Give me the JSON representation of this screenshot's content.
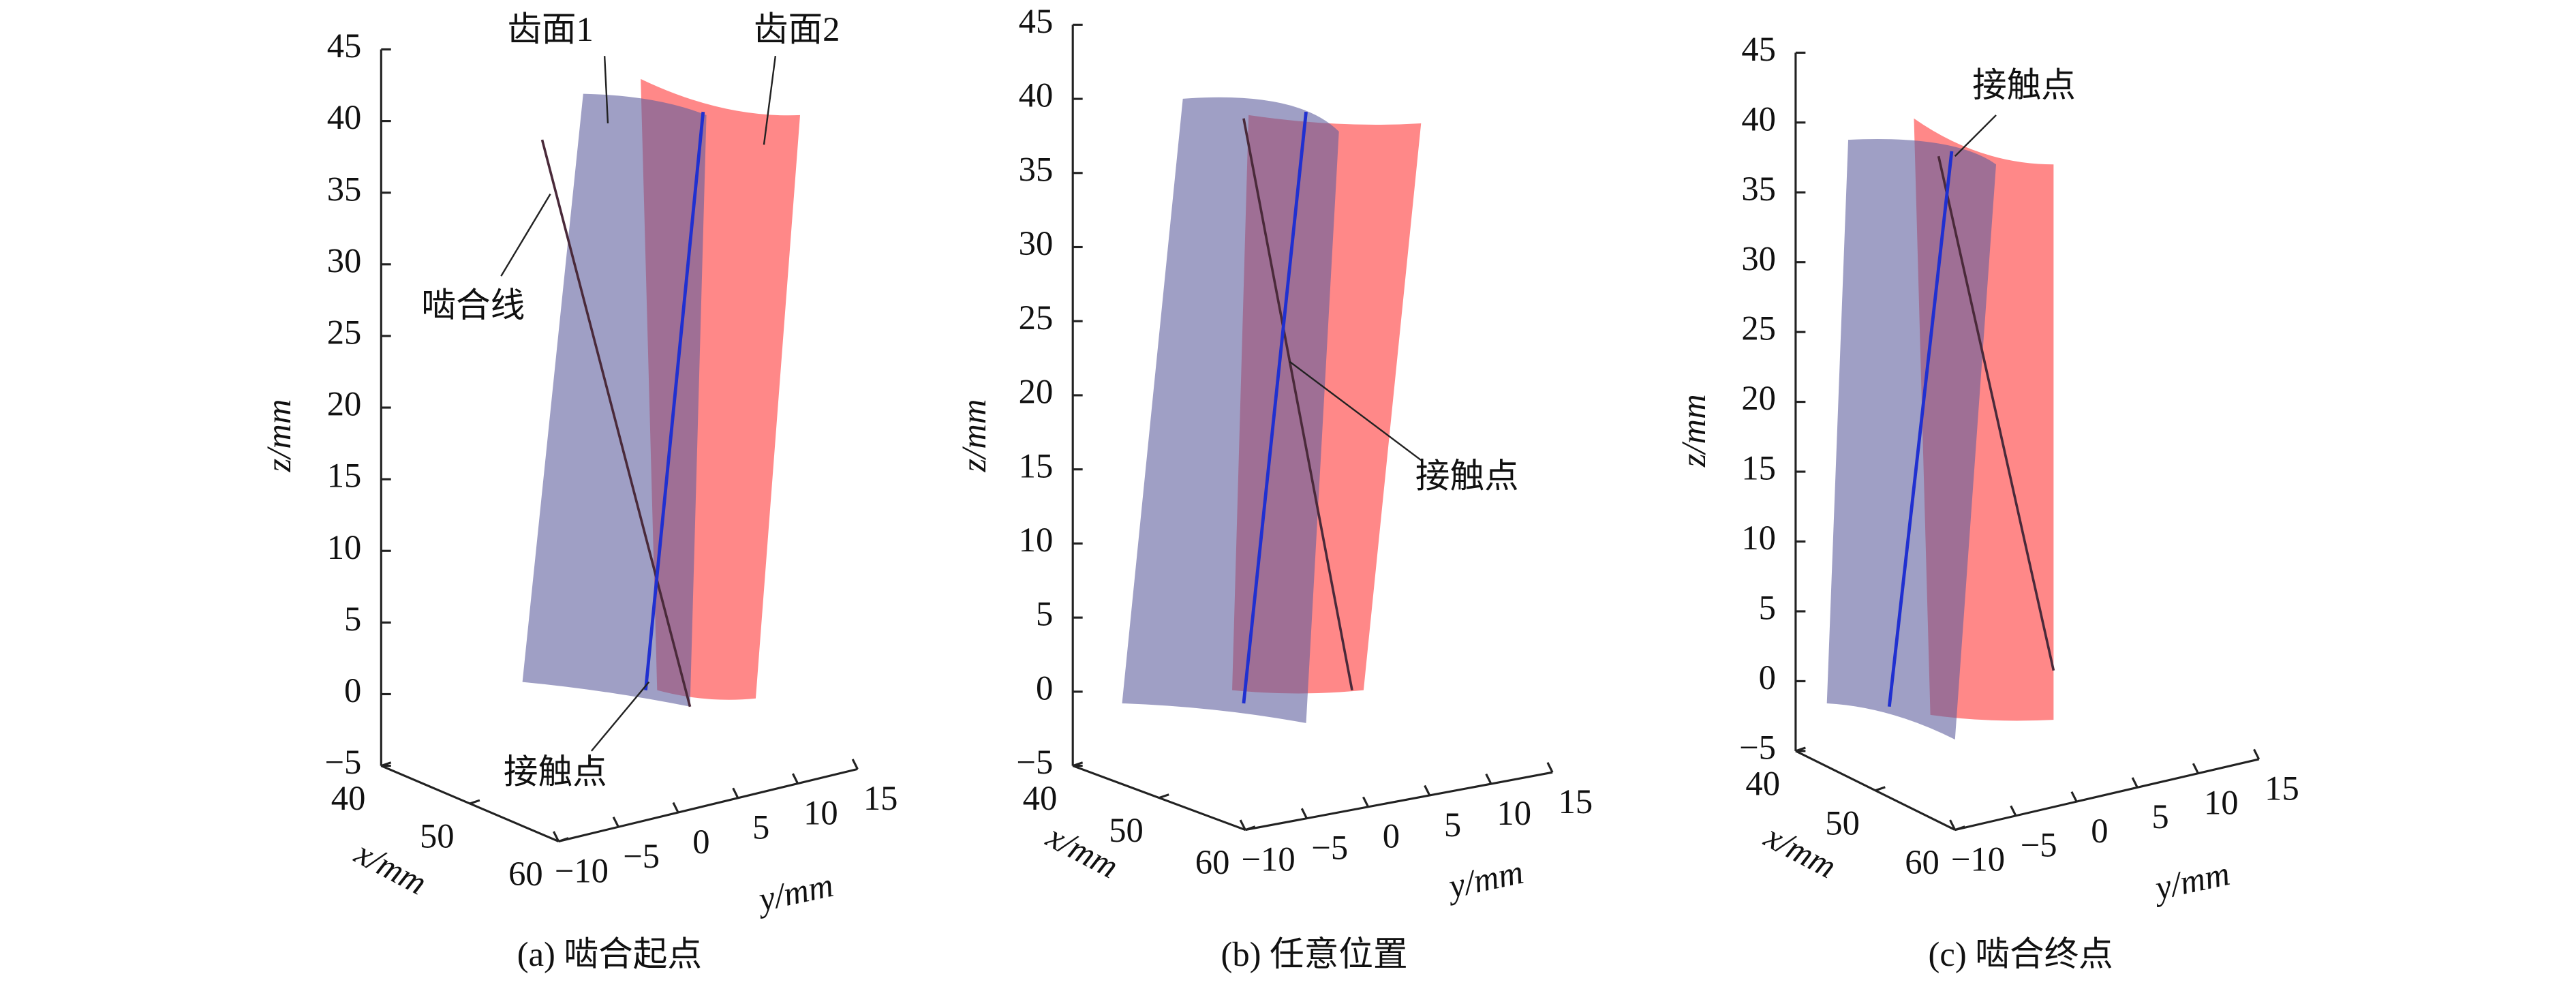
{
  "chart_data": [
    {
      "type": "surface3d",
      "title": "(a) 啮合起点",
      "xlabel": "x/mm",
      "ylabel": "y/mm",
      "zlabel": "z/mm",
      "xlim": [
        40,
        60
      ],
      "xticks": [
        40,
        50,
        60
      ],
      "ylim": [
        -10,
        15
      ],
      "yticks": [
        {
          "value": -10,
          "label": "−10"
        },
        {
          "value": -5,
          "label": "−5"
        },
        0,
        5,
        10,
        15
      ],
      "zlim": [
        -5,
        45
      ],
      "zticks": [
        {
          "value": -5,
          "label": "−5"
        },
        0,
        5,
        10,
        15,
        20,
        25,
        30,
        35,
        40,
        45
      ],
      "annotations": [
        "齿面1",
        "齿面2",
        "啮合线",
        "接触点"
      ]
    },
    {
      "type": "surface3d",
      "title": "(b) 任意位置",
      "xlabel": "x/mm",
      "ylabel": "y/mm",
      "zlabel": "z/mm",
      "xlim": [
        40,
        60
      ],
      "xticks": [
        40,
        50,
        60
      ],
      "ylim": [
        -10,
        15
      ],
      "yticks": [
        {
          "value": -10,
          "label": "−10"
        },
        {
          "value": -5,
          "label": "−5"
        },
        0,
        5,
        10,
        15
      ],
      "zlim": [
        -5,
        45
      ],
      "zticks": [
        {
          "value": -5,
          "label": "−5"
        },
        0,
        5,
        10,
        15,
        20,
        25,
        30,
        35,
        40,
        45
      ],
      "annotations": [
        "接触点"
      ]
    },
    {
      "type": "surface3d",
      "title": "(c) 啮合终点",
      "xlabel": "x/mm",
      "ylabel": "y/mm",
      "zlabel": "z/mm",
      "xlim": [
        40,
        60
      ],
      "xticks": [
        40,
        50,
        60
      ],
      "ylim": [
        -10,
        15
      ],
      "yticks": [
        {
          "value": -10,
          "label": "−10"
        },
        {
          "value": -5,
          "label": "−5"
        },
        0,
        5,
        10,
        15
      ],
      "zlim": [
        -5,
        45
      ],
      "zticks": [
        {
          "value": -5,
          "label": "−5"
        },
        0,
        5,
        10,
        15,
        20,
        25,
        30,
        35,
        40,
        45
      ],
      "annotations": [
        "接触点"
      ]
    }
  ]
}
